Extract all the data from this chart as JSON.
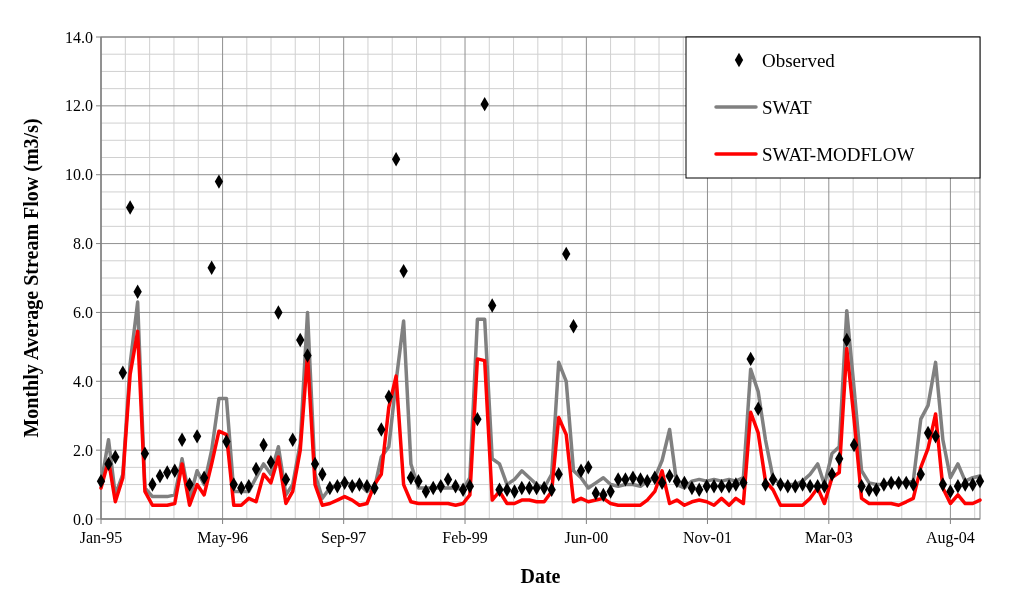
{
  "chart_data": {
    "type": "line",
    "xlabel": "Date",
    "ylabel": "Monthly Average Stream Flow (m3/s)",
    "x": [
      "1995-01",
      "1995-02",
      "1995-03",
      "1995-04",
      "1995-05",
      "1995-06",
      "1995-07",
      "1995-08",
      "1995-09",
      "1995-10",
      "1995-11",
      "1995-12",
      "1996-01",
      "1996-02",
      "1996-03",
      "1996-04",
      "1996-05",
      "1996-06",
      "1996-07",
      "1996-08",
      "1996-09",
      "1996-10",
      "1996-11",
      "1996-12",
      "1997-01",
      "1997-02",
      "1997-03",
      "1997-04",
      "1997-05",
      "1997-06",
      "1997-07",
      "1997-08",
      "1997-09",
      "1997-10",
      "1997-11",
      "1997-12",
      "1998-01",
      "1998-02",
      "1998-03",
      "1998-04",
      "1998-05",
      "1998-06",
      "1998-07",
      "1998-08",
      "1998-09",
      "1998-10",
      "1998-11",
      "1998-12",
      "1999-01",
      "1999-02",
      "1999-03",
      "1999-04",
      "1999-05",
      "1999-06",
      "1999-07",
      "1999-08",
      "1999-09",
      "1999-10",
      "1999-11",
      "1999-12",
      "2000-01",
      "2000-02",
      "2000-03",
      "2000-04",
      "2000-05",
      "2000-06",
      "2000-07",
      "2000-08",
      "2000-09",
      "2000-10",
      "2000-11",
      "2000-12",
      "2001-01",
      "2001-02",
      "2001-03",
      "2001-04",
      "2001-05",
      "2001-06",
      "2001-07",
      "2001-08",
      "2001-09",
      "2001-10",
      "2001-11",
      "2001-12",
      "2002-01",
      "2002-02",
      "2002-03",
      "2002-04",
      "2002-05",
      "2002-06",
      "2002-07",
      "2002-08",
      "2002-09",
      "2002-10",
      "2002-11",
      "2002-12",
      "2003-01",
      "2003-02",
      "2003-03",
      "2003-04",
      "2003-05",
      "2003-06",
      "2003-07",
      "2003-08",
      "2003-09",
      "2003-10",
      "2003-11",
      "2003-12",
      "2004-01",
      "2004-02",
      "2004-03",
      "2004-04",
      "2004-05",
      "2004-06",
      "2004-07",
      "2004-08",
      "2004-09",
      "2004-10",
      "2004-11",
      "2004-12"
    ],
    "series": [
      {
        "name": "Observed",
        "type": "scatter",
        "marker": "diamond",
        "color": "#000000",
        "values": [
          1.1,
          1.6,
          1.8,
          4.25,
          9.05,
          6.6,
          1.9,
          1.0,
          1.25,
          1.35,
          1.4,
          2.3,
          1.0,
          2.4,
          1.2,
          7.3,
          9.8,
          2.25,
          1.0,
          0.9,
          0.95,
          1.45,
          2.15,
          1.65,
          6.0,
          1.15,
          2.3,
          5.2,
          4.75,
          1.6,
          1.3,
          0.9,
          0.95,
          1.05,
          0.95,
          1.0,
          0.95,
          0.9,
          2.6,
          3.55,
          10.45,
          7.2,
          1.2,
          1.1,
          0.8,
          0.9,
          0.95,
          1.15,
          0.95,
          0.85,
          0.95,
          2.9,
          12.05,
          6.2,
          0.85,
          0.85,
          0.8,
          0.9,
          0.9,
          0.9,
          0.9,
          0.85,
          1.3,
          7.7,
          5.6,
          1.4,
          1.5,
          0.75,
          0.7,
          0.8,
          1.15,
          1.15,
          1.2,
          1.15,
          1.1,
          1.2,
          1.05,
          1.25,
          1.1,
          1.05,
          0.9,
          0.85,
          0.95,
          0.95,
          0.95,
          0.95,
          1.0,
          1.05,
          4.65,
          3.2,
          1.0,
          1.15,
          1.0,
          0.95,
          0.95,
          1.0,
          0.95,
          0.95,
          0.95,
          1.3,
          1.75,
          5.2,
          2.15,
          0.95,
          0.85,
          0.85,
          1.0,
          1.05,
          1.05,
          1.05,
          1.0,
          1.3,
          2.5,
          2.4,
          1.0,
          0.8,
          0.95,
          1.0,
          1.0,
          1.1
        ]
      },
      {
        "name": "SWAT",
        "color": "#808080",
        "values": [
          1.0,
          2.3,
          0.7,
          1.3,
          4.5,
          6.3,
          0.9,
          0.65,
          0.65,
          0.65,
          0.7,
          1.75,
          0.6,
          1.4,
          1.0,
          2.0,
          3.5,
          3.5,
          0.8,
          0.8,
          0.8,
          1.2,
          1.6,
          1.3,
          2.1,
          0.7,
          1.0,
          2.2,
          6.0,
          1.3,
          0.6,
          0.9,
          1.0,
          1.05,
          1.0,
          1.0,
          0.8,
          0.9,
          1.8,
          2.1,
          4.0,
          5.75,
          1.6,
          0.9,
          0.9,
          0.9,
          0.9,
          0.9,
          0.9,
          0.85,
          1.2,
          5.8,
          5.8,
          1.75,
          1.6,
          1.0,
          1.15,
          1.4,
          1.2,
          1.0,
          0.9,
          1.3,
          4.55,
          4.0,
          1.4,
          1.2,
          0.9,
          1.05,
          1.2,
          1.0,
          0.95,
          1.0,
          1.0,
          0.95,
          1.1,
          1.2,
          1.7,
          2.6,
          1.0,
          0.9,
          1.1,
          1.15,
          1.1,
          1.15,
          1.1,
          1.15,
          1.1,
          1.2,
          4.35,
          3.7,
          2.3,
          1.2,
          1.0,
          1.0,
          1.0,
          1.1,
          1.3,
          1.6,
          1.0,
          1.9,
          2.1,
          6.05,
          3.8,
          1.4,
          1.05,
          1.0,
          1.0,
          1.05,
          1.05,
          1.05,
          1.1,
          2.9,
          3.3,
          4.55,
          2.3,
          1.2,
          1.6,
          1.1,
          1.2,
          1.25
        ]
      },
      {
        "name": "SWAT-MODFLOW",
        "color": "#ff0000",
        "values": [
          0.9,
          1.7,
          0.5,
          1.2,
          4.2,
          5.45,
          0.8,
          0.4,
          0.4,
          0.4,
          0.45,
          1.6,
          0.4,
          1.0,
          0.7,
          1.6,
          2.55,
          2.45,
          0.4,
          0.4,
          0.6,
          0.5,
          1.3,
          1.05,
          1.8,
          0.45,
          0.8,
          2.0,
          4.75,
          1.0,
          0.4,
          0.45,
          0.55,
          0.65,
          0.55,
          0.4,
          0.45,
          1.0,
          1.3,
          3.25,
          4.15,
          1.0,
          0.5,
          0.45,
          0.45,
          0.45,
          0.45,
          0.45,
          0.4,
          0.45,
          0.7,
          4.65,
          4.6,
          0.55,
          0.8,
          0.45,
          0.45,
          0.55,
          0.55,
          0.5,
          0.5,
          0.8,
          2.95,
          2.45,
          0.5,
          0.6,
          0.5,
          0.55,
          0.6,
          0.45,
          0.4,
          0.4,
          0.4,
          0.4,
          0.55,
          0.8,
          1.4,
          0.45,
          0.55,
          0.4,
          0.5,
          0.55,
          0.5,
          0.4,
          0.6,
          0.4,
          0.6,
          0.45,
          3.1,
          2.5,
          1.1,
          0.85,
          0.4,
          0.4,
          0.4,
          0.4,
          0.6,
          0.9,
          0.45,
          1.2,
          1.35,
          4.95,
          2.9,
          0.6,
          0.45,
          0.45,
          0.45,
          0.45,
          0.4,
          0.5,
          0.6,
          1.5,
          2.05,
          3.05,
          0.9,
          0.45,
          0.7,
          0.45,
          0.45,
          0.55
        ]
      }
    ],
    "xlim": [
      "1995-01-01",
      "2004-12-01"
    ],
    "xticks": [
      {
        "value": "1995-01-01",
        "label": "Jan-95"
      },
      {
        "value": "1996-05-16",
        "label": "May-96"
      },
      {
        "value": "1997-09-27",
        "label": "Sep-97"
      },
      {
        "value": "1999-02-09",
        "label": "Feb-99"
      },
      {
        "value": "2000-06-23",
        "label": "Jun-00"
      },
      {
        "value": "2001-11-04",
        "label": "Nov-01"
      },
      {
        "value": "2003-03-19",
        "label": "Mar-03"
      },
      {
        "value": "2004-08-01",
        "label": "Aug-04"
      }
    ],
    "ylim": [
      0,
      14
    ],
    "yticks": [
      {
        "value": 0,
        "label": "0.0"
      },
      {
        "value": 2,
        "label": "2.0"
      },
      {
        "value": 4,
        "label": "4.0"
      },
      {
        "value": 6,
        "label": "6.0"
      },
      {
        "value": 8,
        "label": "8.0"
      },
      {
        "value": 10,
        "label": "10.0"
      },
      {
        "value": 12,
        "label": "12.0"
      },
      {
        "value": 14,
        "label": "14.0"
      }
    ],
    "grid": true,
    "legend": "top right",
    "line_style": "solid"
  }
}
